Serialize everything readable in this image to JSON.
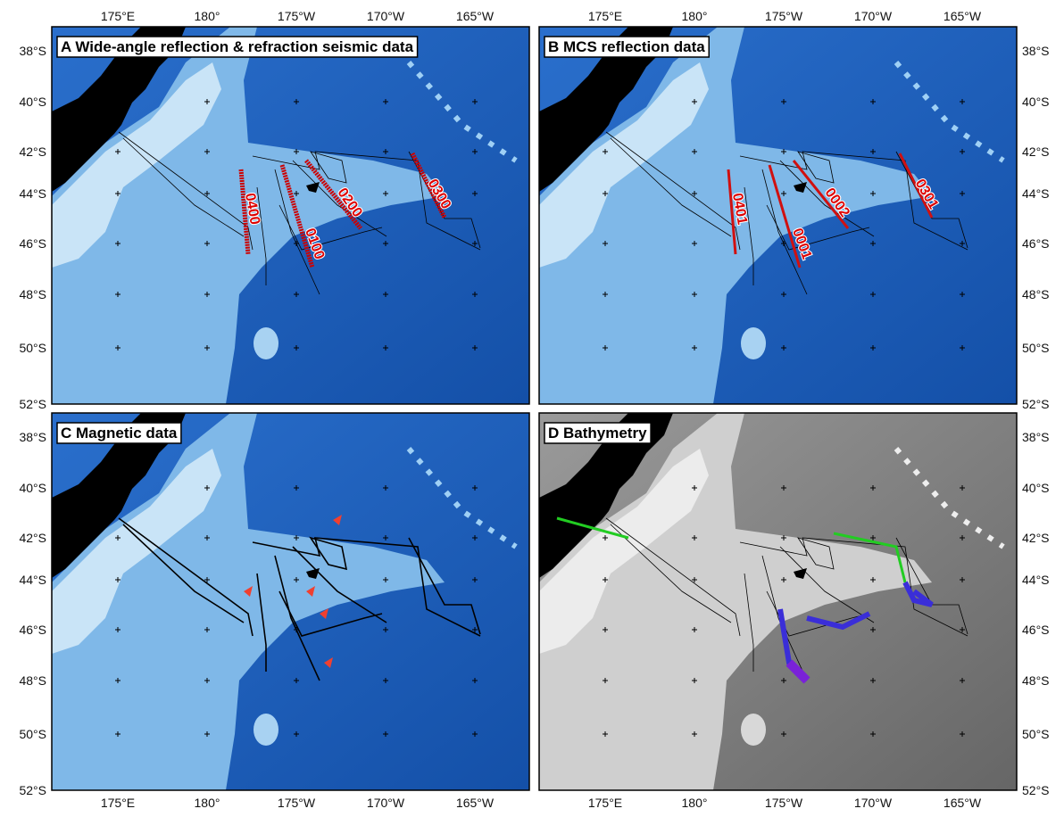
{
  "axes": {
    "longitude_labels": [
      "175°E",
      "180°",
      "175°W",
      "170°W",
      "165°W"
    ],
    "latitude_labels": [
      "38°S",
      "40°S",
      "42°S",
      "44°S",
      "46°S",
      "48°S",
      "50°S",
      "52°S"
    ]
  },
  "panels": [
    {
      "title": "A Wide-angle reflection & refraction seismic data",
      "line_labels": [
        "0400",
        "0100",
        "0200",
        "0300"
      ]
    },
    {
      "title": "B MCS reflection data",
      "line_labels": [
        "0401",
        "0001",
        "0002",
        "0301"
      ]
    },
    {
      "title": "C Magnetic data"
    },
    {
      "title": "D Bathymetry"
    }
  ]
}
